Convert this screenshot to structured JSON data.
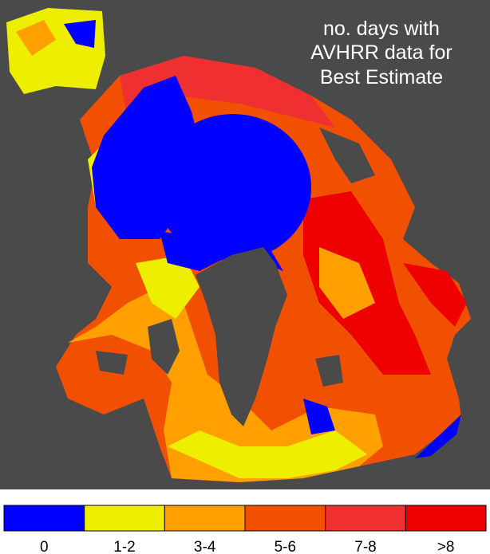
{
  "map": {
    "title_lines": [
      "no. days with",
      "AVHRR data for",
      "Best Estimate"
    ],
    "legend": [
      {
        "label": "0",
        "color": "#0000ff"
      },
      {
        "label": "1-2",
        "color": "#eeee00"
      },
      {
        "label": "3-4",
        "color": "#ffa000"
      },
      {
        "label": "5-6",
        "color": "#f05000"
      },
      {
        "label": "7-8",
        "color": "#f03030"
      },
      {
        "label": ">8",
        "color": "#ee0000"
      }
    ]
  }
}
